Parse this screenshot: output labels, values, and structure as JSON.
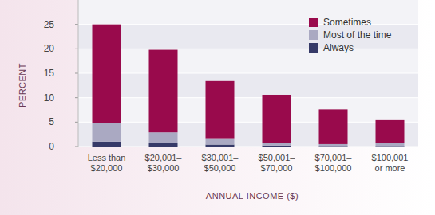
{
  "chart_data": {
    "type": "bar",
    "stacked": true,
    "x_label": "ANNUAL INCOME ($)",
    "y_label": "PERCENT",
    "categories": [
      "Less than $20,000",
      "$20,001–$30,000",
      "$30,001–$50,000",
      "$50,001–$70,000",
      "$70,001–$100,000",
      "$100,001 or more"
    ],
    "series": [
      {
        "name": "Always",
        "color": "#363a68",
        "values": [
          1.0,
          0.8,
          0.4,
          0.2,
          0.1,
          0.1
        ]
      },
      {
        "name": "Most of the time",
        "color": "#aaa9c2",
        "values": [
          3.8,
          2.1,
          1.3,
          0.6,
          0.4,
          0.6
        ]
      },
      {
        "name": "Sometimes",
        "color": "#990a4c",
        "values": [
          20.2,
          16.9,
          11.7,
          9.8,
          7.1,
          4.7
        ]
      }
    ],
    "ylim": [
      0,
      30
    ],
    "yticks": [
      0,
      5,
      10,
      15,
      20,
      25
    ],
    "grid": true,
    "legend": "top-right"
  }
}
